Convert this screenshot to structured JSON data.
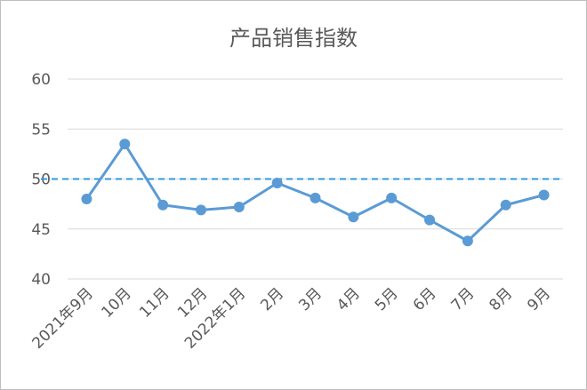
{
  "chart_data": {
    "type": "line",
    "title": "产品销售指数",
    "xlabel": "",
    "ylabel": "",
    "categories": [
      "2021年9月",
      "10月",
      "11月",
      "12月",
      "2022年1月",
      "2月",
      "3月",
      "4月",
      "5月",
      "6月",
      "7月",
      "8月",
      "9月"
    ],
    "series": [
      {
        "values": [
          48.0,
          53.5,
          47.4,
          46.9,
          47.2,
          49.6,
          48.1,
          46.2,
          48.1,
          45.9,
          43.8,
          47.4,
          48.4
        ],
        "color": "#5b9bd5"
      }
    ],
    "reference_line": {
      "value": 50,
      "style": "dashed",
      "color": "#2e9be0"
    },
    "ylim": [
      40,
      60
    ],
    "yticks": [
      40,
      45,
      50,
      55,
      60
    ],
    "grid": true,
    "legend": "none"
  }
}
